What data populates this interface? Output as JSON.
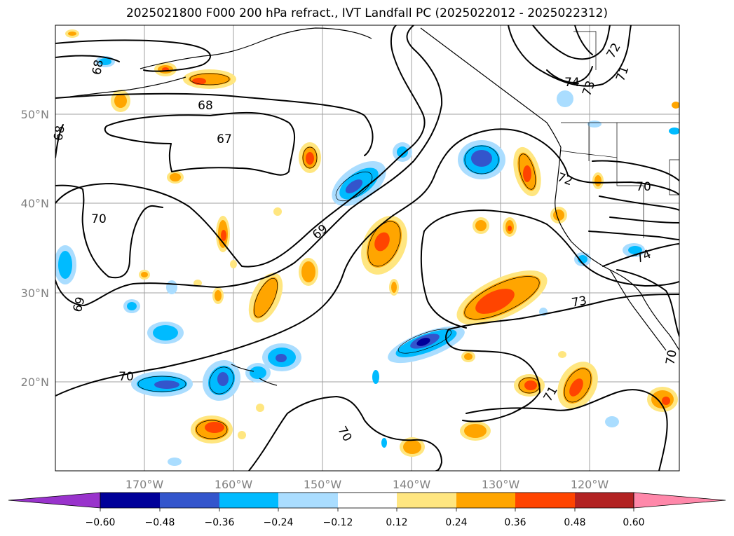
{
  "title": "2025021800 F000 200 hPa refract., IVT Landfall PC (2025022012 - 2025022312)",
  "map": {
    "lat_labels": [
      "50°N",
      "40°N",
      "30°N",
      "20°N"
    ],
    "lon_labels": [
      "170°W",
      "160°W",
      "150°W",
      "140°W",
      "130°W",
      "120°W"
    ],
    "gridlines": true,
    "contour_labels": [
      "68",
      "68",
      "68",
      "67",
      "69",
      "69",
      "70",
      "70",
      "70",
      "70",
      "71",
      "72",
      "72",
      "73",
      "74",
      "71",
      "73",
      "74",
      "70"
    ]
  },
  "colorbar": {
    "orientation": "horizontal",
    "extend": "both",
    "ticks": [
      "−0.60",
      "−0.48",
      "−0.36",
      "−0.24",
      "−0.12",
      "0.12",
      "0.24",
      "0.36",
      "0.48",
      "0.60"
    ],
    "colors": {
      "under": "#9933cc",
      "n060_n048": "#000099",
      "n048_n036": "#3355cc",
      "n036_n024": "#00bbff",
      "n024_n012": "#aaddff",
      "n012_012": "#ffffff",
      "p012_024": "#ffe680",
      "p024_036": "#ffa500",
      "p036_048": "#ff4400",
      "p048_060": "#b22222",
      "over": "#ff88aa"
    }
  },
  "colors": {
    "contour": "#000000",
    "coast": "#000000",
    "grid": "#a0a0a0",
    "axis_label": "#808080"
  }
}
